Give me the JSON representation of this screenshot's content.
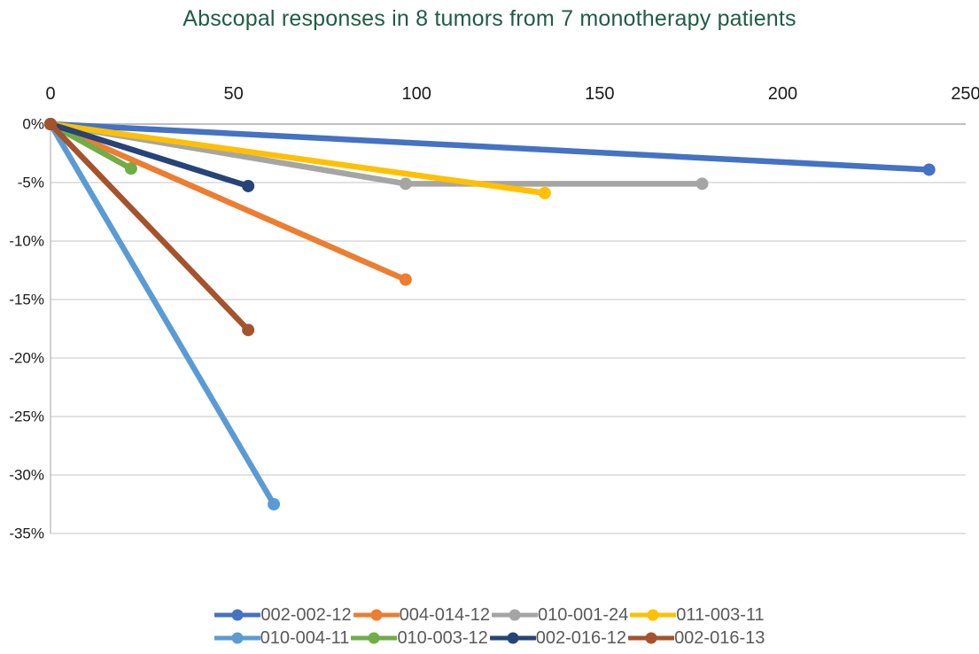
{
  "title": "Abscopal responses in 8 tumors from 7 monotherapy patients",
  "style": {
    "title_color": "#1F5C45",
    "tick_color": "#1a1a1a",
    "legend_text_color": "#595959",
    "grid_color": "#D9D9D9",
    "zero_line_color": "#BFBFBF",
    "axis_line_color": "#C0C0C0"
  },
  "chart_data": {
    "type": "line",
    "title": "Abscopal responses in 8 tumors from 7 monotherapy patients",
    "xlabel": "",
    "ylabel": "",
    "x_axis": {
      "position": "top",
      "range": [
        0,
        250
      ],
      "ticks": [
        0,
        50,
        100,
        150,
        200,
        250
      ]
    },
    "y_axis": {
      "position": "left",
      "range": [
        -35,
        0
      ],
      "unit": "%",
      "tick_values": [
        0,
        -5,
        -10,
        -15,
        -20,
        -25,
        -30,
        -35
      ],
      "tick_labels": [
        "0%",
        "-5%",
        "-10%",
        "-15%",
        "-20%",
        "-25%",
        "-30%",
        "-35%"
      ]
    },
    "grid": true,
    "legend_position": "bottom",
    "legend_items_per_row": 4,
    "series": [
      {
        "name": "002-002-12",
        "color": "#4472C4",
        "points": [
          [
            0,
            0
          ],
          [
            240,
            -3.9
          ]
        ]
      },
      {
        "name": "004-014-12",
        "color": "#ED7D31",
        "points": [
          [
            0,
            0
          ],
          [
            97,
            -13.3
          ]
        ]
      },
      {
        "name": "010-001-24",
        "color": "#A5A5A5",
        "points": [
          [
            0,
            0
          ],
          [
            97,
            -5.1
          ],
          [
            178,
            -5.1
          ]
        ]
      },
      {
        "name": "011-003-11",
        "color": "#FFC000",
        "points": [
          [
            0,
            0
          ],
          [
            135,
            -5.9
          ]
        ]
      },
      {
        "name": "010-004-11",
        "color": "#5B9BD5",
        "points": [
          [
            0,
            0
          ],
          [
            61,
            -32.5
          ]
        ]
      },
      {
        "name": "010-003-12",
        "color": "#70AD47",
        "points": [
          [
            0,
            0
          ],
          [
            22,
            -3.8
          ]
        ]
      },
      {
        "name": "002-016-12",
        "color": "#264478",
        "points": [
          [
            0,
            0
          ],
          [
            54,
            -5.3
          ]
        ]
      },
      {
        "name": "002-016-13",
        "color": "#A5532C",
        "points": [
          [
            0,
            0
          ],
          [
            54,
            -17.6
          ]
        ]
      }
    ]
  }
}
